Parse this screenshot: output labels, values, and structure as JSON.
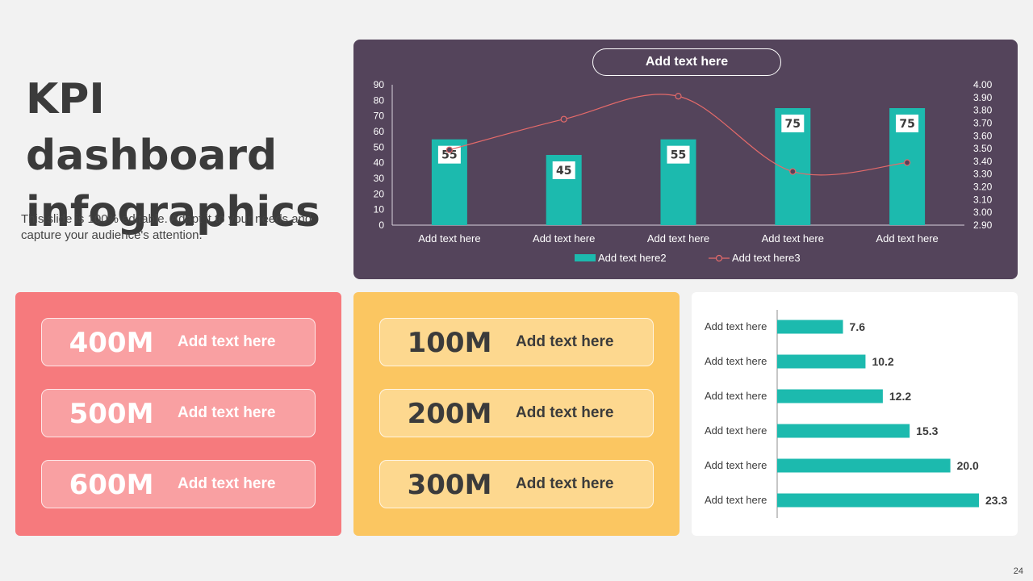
{
  "slide": {
    "title": "KPI dashboard infographics",
    "subtitle": "This slide is 100% editable. Adapt it to your needs and capture your audience's attention.",
    "page_number": "24"
  },
  "colors": {
    "teal": "#1cbaae",
    "line": "#e46a6a",
    "card_purple": "#54445b",
    "red_panel": "#f67a7d",
    "yellow_panel": "#fbc661"
  },
  "kpi_red": [
    {
      "value": "400M",
      "label": "Add text here"
    },
    {
      "value": "500M",
      "label": "Add text here"
    },
    {
      "value": "600M",
      "label": "Add text here"
    }
  ],
  "kpi_yellow": [
    {
      "value": "100M",
      "label": "Add text here"
    },
    {
      "value": "200M",
      "label": "Add text here"
    },
    {
      "value": "300M",
      "label": "Add text here"
    }
  ],
  "chart_data": [
    {
      "type": "bar",
      "title": "Add text here",
      "categories": [
        "Add text here",
        "Add text here",
        "Add text here",
        "Add text here",
        "Add text here"
      ],
      "series": [
        {
          "name": "Add text here2",
          "type": "bar",
          "axis": "left",
          "values": [
            55,
            45,
            55,
            75,
            75
          ]
        },
        {
          "name": "Add text here3",
          "type": "line",
          "axis": "right",
          "values": [
            3.49,
            3.73,
            3.91,
            3.32,
            3.39
          ]
        }
      ],
      "ylim": [
        0,
        90
      ],
      "yticks": [
        "0",
        "10",
        "20",
        "30",
        "40",
        "50",
        "60",
        "70",
        "80",
        "90"
      ],
      "y2lim": [
        2.9,
        4.0
      ],
      "y2ticks": [
        "2.90",
        "3.00",
        "3.10",
        "3.20",
        "3.30",
        "3.40",
        "3.50",
        "3.60",
        "3.70",
        "3.80",
        "3.90",
        "4.00"
      ],
      "legend": "bottom",
      "grid": false
    },
    {
      "type": "bar",
      "orientation": "horizontal",
      "categories": [
        "Add text here",
        "Add text here",
        "Add text here",
        "Add text here",
        "Add text here",
        "Add text here"
      ],
      "values": [
        7.6,
        10.2,
        12.2,
        15.3,
        20.0,
        23.3
      ],
      "value_labels": [
        "7.6",
        "10.2",
        "12.2",
        "15.3",
        "20.0",
        "23.3"
      ],
      "xlim": [
        0,
        23.3
      ],
      "grid": false
    }
  ]
}
